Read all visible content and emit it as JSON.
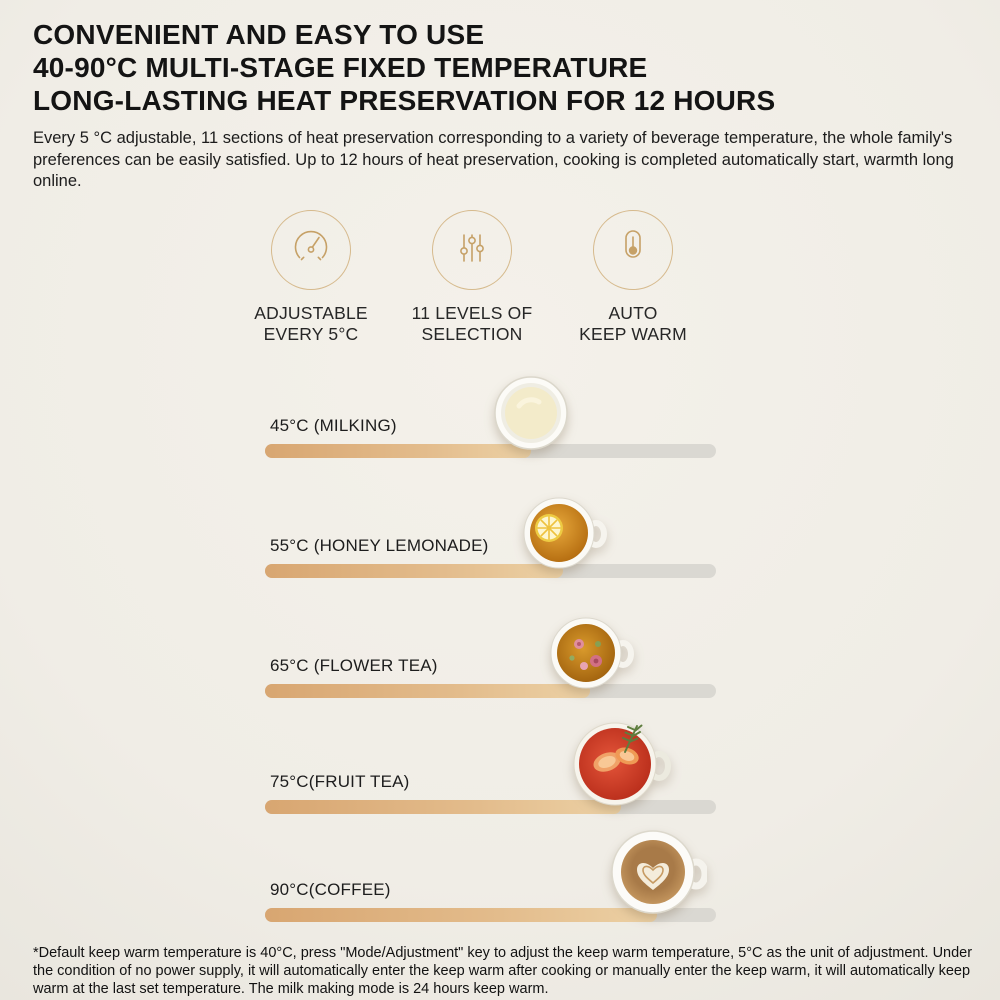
{
  "colors": {
    "background": "#f1eee8",
    "accent_gold": "#c9a468",
    "bar_fill_start": "#d8a671",
    "bar_fill_end": "#ecd1a5",
    "bar_track": "#dad8d2"
  },
  "header": {
    "title_lines": [
      "CONVENIENT AND EASY TO USE",
      "40-90°C MULTI-STAGE FIXED TEMPERATURE",
      "LONG-LASTING HEAT PRESERVATION FOR 12 HOURS"
    ],
    "description": "Every 5 °C adjustable, 11 sections of heat preservation corresponding to a variety of beverage temperature, the whole family's preferences can be easily satisfied. Up to 12 hours of heat preservation, cooking is completed automatically start, warmth long online."
  },
  "features": [
    {
      "icon": "gauge-dial-icon",
      "label_line1": "ADJUSTABLE",
      "label_line2": "EVERY 5°C"
    },
    {
      "icon": "level-sliders-icon",
      "label_line1": "11 LEVELS OF",
      "label_line2": "SELECTION"
    },
    {
      "icon": "thermometer-icon",
      "label_line1": "AUTO",
      "label_line2": "KEEP WARM"
    }
  ],
  "temperature_rows": [
    {
      "label": "45°C (MILKING)",
      "fill_percent": 59,
      "icon": "milk-cup"
    },
    {
      "label": "55°C (HONEY LEMONADE)",
      "fill_percent": 66,
      "icon": "honey-lemonade-cup"
    },
    {
      "label": "65°C (FLOWER TEA)",
      "fill_percent": 72,
      "icon": "flower-tea-cup"
    },
    {
      "label": "75°C(FRUIT TEA)",
      "fill_percent": 79,
      "icon": "fruit-tea-cup"
    },
    {
      "label": "90°C(COFFEE)",
      "fill_percent": 87,
      "icon": "coffee-cup"
    }
  ],
  "footnote": "*Default keep warm temperature is 40°C, press \"Mode/Adjustment\" key to adjust the keep warm temperature, 5°C as the unit of adjustment. Under the condition of no power supply, it will automatically enter the keep warm after cooking or manually enter the keep warm, it will automatically keep warm at the last set temperature. The milk making mode is 24 hours keep warm."
}
